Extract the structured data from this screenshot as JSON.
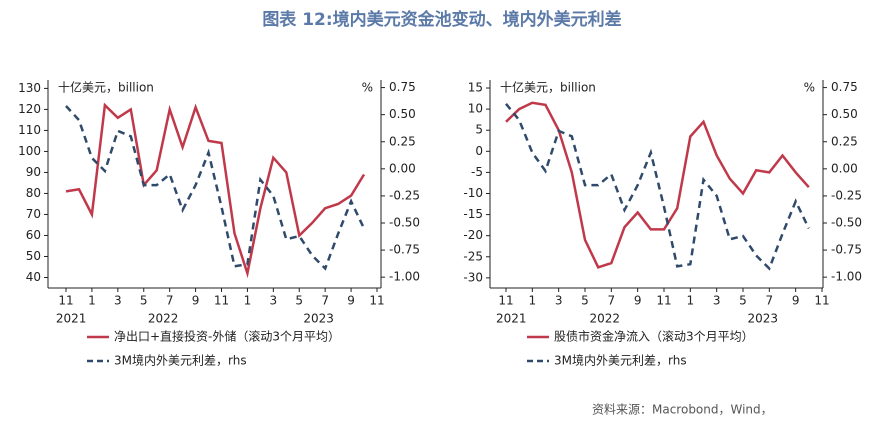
{
  "title": "图表 12:境内美元资金池变动、境内外美元利差",
  "source": "资料来源：Macrobond，Wind，",
  "chart_data": [
    {
      "type": "line",
      "y_label": "十亿美元，billion",
      "y2_label": "%",
      "categories": [
        "11",
        null,
        "1",
        null,
        "3",
        null,
        "5",
        null,
        "7",
        null,
        "9",
        null,
        "11",
        null,
        "1",
        null,
        "3",
        null,
        "5",
        null,
        "7",
        null,
        "9",
        null,
        "11"
      ],
      "years": [
        "2021",
        "2022",
        "2023"
      ],
      "series": [
        {
          "name": "净出口+直接投资-外储（滚动3个月平均）",
          "color": "#c0394b",
          "style": "solid",
          "values": [
            81,
            82,
            70,
            122,
            116,
            120,
            84,
            91,
            120,
            102,
            121,
            105,
            104,
            61,
            42,
            73,
            97,
            90,
            60,
            66,
            73,
            75,
            79,
            89,
            null
          ]
        },
        {
          "name": "3M境内外美元利差，rhs",
          "color": "#2f4a6b",
          "style": "dashed",
          "axis": "y2",
          "values": [
            0.58,
            0.45,
            0.1,
            -0.02,
            0.35,
            0.3,
            -0.15,
            -0.15,
            -0.05,
            -0.38,
            -0.15,
            0.15,
            -0.35,
            -0.9,
            -0.88,
            -0.1,
            -0.25,
            -0.65,
            -0.62,
            -0.8,
            -0.92,
            -0.6,
            -0.3,
            -0.55,
            null
          ]
        }
      ],
      "ylim": [
        35,
        134
      ],
      "yticks": [
        40,
        50,
        60,
        70,
        80,
        90,
        100,
        110,
        120,
        130
      ],
      "y2lim": [
        -1.1,
        0.82
      ],
      "y2ticks": [
        0.75,
        {
          "value": 0.5,
          "label": "0.50"
        },
        0.25,
        {
          "value": 0,
          "label": "0.00"
        },
        -0.25,
        {
          "value": -0.5,
          "label": "-0.50"
        },
        -0.75,
        {
          "value": -1,
          "label": "-1.00"
        }
      ]
    },
    {
      "type": "line",
      "y_label": "十亿美元，billion",
      "y2_label": "%",
      "categories": [
        "11",
        null,
        "1",
        null,
        "3",
        null,
        "5",
        null,
        "7",
        null,
        "9",
        null,
        "11",
        null,
        "1",
        null,
        "3",
        null,
        "5",
        null,
        "7",
        null,
        "9",
        null,
        "11"
      ],
      "years": [
        "2021",
        "2022",
        "2023"
      ],
      "series": [
        {
          "name": "股债市资金净流入（滚动3个月平均）",
          "color": "#c0394b",
          "style": "solid",
          "values": [
            7,
            10,
            11.5,
            11,
            5,
            -5,
            -21,
            -27.5,
            -26.5,
            -18,
            -14.5,
            -18.5,
            -18.5,
            -13.5,
            3.5,
            7,
            -1,
            -6.5,
            -10,
            -4.5,
            -5,
            -1,
            -5,
            -8.5,
            null
          ]
        },
        {
          "name": "3M境内外美元利差，rhs",
          "color": "#2f4a6b",
          "style": "dashed",
          "axis": "y2",
          "values": [
            0.6,
            0.45,
            0.15,
            -0.02,
            0.35,
            0.3,
            -0.15,
            -0.15,
            -0.05,
            -0.38,
            -0.15,
            0.15,
            -0.35,
            -0.9,
            -0.88,
            -0.1,
            -0.25,
            -0.65,
            -0.62,
            -0.8,
            -0.92,
            -0.6,
            -0.3,
            -0.55,
            null
          ]
        }
      ],
      "ylim": [
        -32.4,
        16.9
      ],
      "yticks": [
        15,
        10,
        5,
        0,
        -5,
        -10,
        -15,
        -20,
        -25,
        -30
      ],
      "y2lim": [
        -1.1,
        0.82
      ],
      "y2ticks": [
        0.75,
        {
          "value": 0.5,
          "label": "0.50"
        },
        0.25,
        {
          "value": 0,
          "label": "0.00"
        },
        -0.25,
        {
          "value": -0.5,
          "label": "-0.50"
        },
        -0.75,
        {
          "value": -1,
          "label": "-1.00"
        }
      ]
    }
  ]
}
